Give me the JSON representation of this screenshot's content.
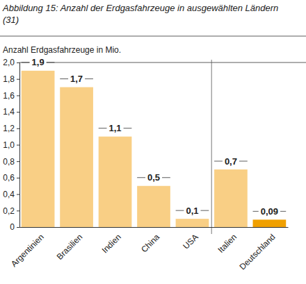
{
  "chart_data": {
    "type": "bar",
    "title": "Abbildung 15: Anzahl der Erdgasfahrzeuge in ausgewählten Ländern (31)",
    "y_label": "Anzahl Erdgasfahrzeuge in Mio.",
    "categories": [
      "Argentinien",
      "Brasilien",
      "Indien",
      "China",
      "USA",
      "Italien",
      "Deutschland"
    ],
    "values": [
      1.9,
      1.7,
      1.1,
      0.5,
      0.1,
      0.7,
      0.09
    ],
    "value_labels": [
      "1,9",
      "1,7",
      "1,1",
      "0,5",
      "0,1",
      "0,7",
      "0,09"
    ],
    "colors": [
      "#f9cf85",
      "#f9cf85",
      "#f9cf85",
      "#f9cf85",
      "#f9cf85",
      "#f9cf85",
      "#f0a000"
    ],
    "ylim": [
      0,
      2.0
    ],
    "yticks": [
      0,
      {
        "value": 0.2,
        "label": "0,2"
      },
      {
        "value": 0.4,
        "label": "0,4"
      },
      {
        "value": 0.6,
        "label": "0,6"
      },
      {
        "value": 0.8,
        "label": "0,8"
      },
      {
        "value": 1.0,
        "label": "1,0"
      },
      {
        "value": 1.2,
        "label": "1,2"
      },
      {
        "value": 1.4,
        "label": "1,4"
      },
      {
        "value": 1.6,
        "label": "1,6"
      },
      {
        "value": 1.8,
        "label": "1,8"
      },
      {
        "value": 2.0,
        "label": "2,0"
      }
    ],
    "grid": false,
    "data_labels": true
  }
}
